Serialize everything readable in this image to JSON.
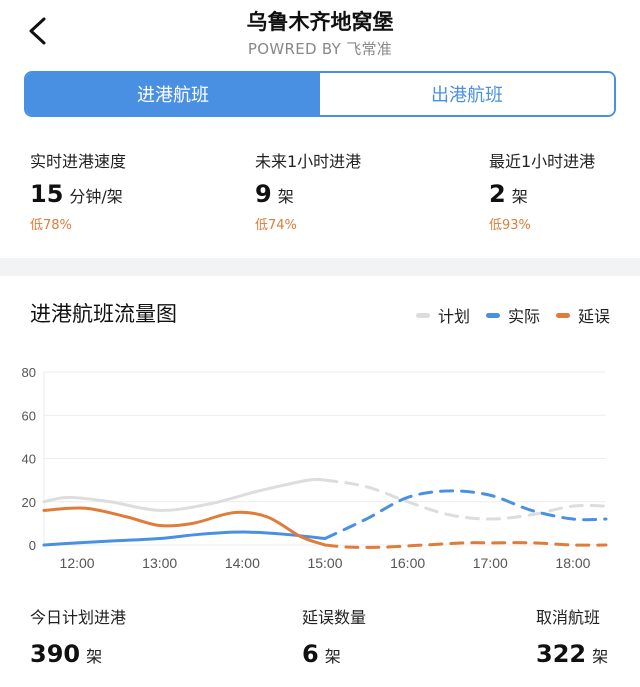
{
  "header": {
    "title": "乌鲁木齐地窝堡",
    "subtitle": "POWRED BY 飞常准"
  },
  "tabs": [
    {
      "label": "进港航班",
      "active": true
    },
    {
      "label": "出港航班",
      "active": false
    }
  ],
  "stats": [
    {
      "label": "实时进港速度",
      "value": "15",
      "unit": "分钟/架",
      "change": "低78%"
    },
    {
      "label": "未来1小时进港",
      "value": "9",
      "unit": "架",
      "change": "低74%"
    },
    {
      "label": "最近1小时进港",
      "value": "2",
      "unit": "架",
      "change": "低93%"
    }
  ],
  "chart_title": "进港航班流量图",
  "legend": [
    {
      "label": "计划",
      "color": "#dddddd"
    },
    {
      "label": "实际",
      "color": "#4a90e2"
    },
    {
      "label": "延误",
      "color": "#e07b3a"
    }
  ],
  "chart_data": {
    "type": "line",
    "title": "进港航班流量图",
    "xlabel": "",
    "ylabel": "",
    "ylim": [
      0,
      80
    ],
    "yticks": [
      "0",
      "20",
      "40",
      "60",
      "80"
    ],
    "xlim": [
      11.6,
      18.4
    ],
    "xticks": [
      "12:00",
      "13:00",
      "14:00",
      "15:00",
      "16:00",
      "17:00",
      "18:00"
    ],
    "xtick_values": [
      12,
      13,
      14,
      15,
      16,
      17,
      18
    ],
    "grid": true,
    "legend_position": "top-right",
    "solid_until": 15,
    "series": [
      {
        "name": "计划",
        "color": "#dddddd",
        "x": [
          11.6,
          11.9,
          12.4,
          13.0,
          13.6,
          14.2,
          14.8,
          15.0,
          15.5,
          16.0,
          16.5,
          17.0,
          17.5,
          18.0,
          18.4
        ],
        "values": [
          20,
          22,
          20,
          16,
          19,
          25,
          30,
          30,
          27,
          20,
          14,
          12,
          14,
          18,
          18
        ]
      },
      {
        "name": "实际",
        "color": "#4a90e2",
        "x": [
          11.6,
          12.0,
          12.5,
          13.0,
          13.5,
          14.0,
          14.5,
          15.0,
          15.5,
          16.0,
          16.5,
          17.0,
          17.5,
          18.0,
          18.4
        ],
        "values": [
          0,
          1,
          2,
          3,
          5,
          6,
          5,
          3,
          12,
          22,
          25,
          23,
          16,
          12,
          12
        ]
      },
      {
        "name": "延误",
        "color": "#e07b3a",
        "x": [
          11.6,
          12.1,
          12.6,
          13.0,
          13.4,
          13.9,
          14.3,
          14.7,
          15.0,
          15.3,
          15.7,
          16.2,
          16.7,
          17.0,
          17.5,
          18.0,
          18.4
        ],
        "values": [
          16,
          17,
          13,
          9,
          10,
          15,
          13,
          4,
          0,
          -1,
          -1,
          0,
          1,
          1,
          1,
          0,
          0
        ]
      }
    ]
  },
  "bottom": [
    {
      "label": "今日计划进港",
      "value": "390",
      "unit": "架"
    },
    {
      "label": "延误数量",
      "value": "6",
      "unit": "架"
    },
    {
      "label": "取消航班",
      "value": "322",
      "unit": "架"
    }
  ]
}
